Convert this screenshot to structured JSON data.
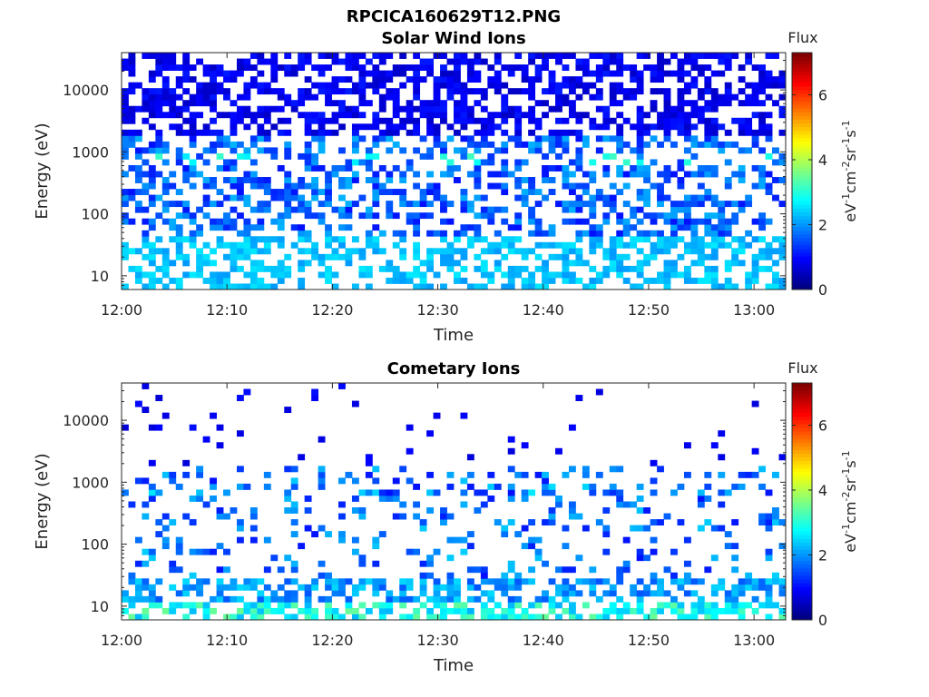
{
  "figure_title": "RPCICA160629T12.PNG",
  "chart_data": [
    {
      "type": "heatmap",
      "title": "Solar Wind Ions",
      "xlabel": "Time",
      "ylabel": "Energy (eV)",
      "xlim": [
        "12:00",
        "13:03"
      ],
      "x_ticks": [
        "12:00",
        "12:10",
        "12:20",
        "12:30",
        "12:40",
        "12:50",
        "13:00"
      ],
      "y_scale": "log",
      "ylim": [
        6,
        40000
      ],
      "y_ticks": [
        10,
        100,
        1000,
        10000
      ],
      "y_tick_labels": [
        "10",
        "100",
        "1000",
        "10000"
      ],
      "colorbar": {
        "title": "Flux",
        "label": "eV-1cm-2sr-1s-1",
        "range": [
          0,
          7.3
        ],
        "ticks": [
          "0",
          "2",
          "4",
          "6"
        ],
        "colormap": "jet"
      },
      "description_of_values": "Dense coverage from ~6 eV to ~40 keV; dark blue (~0.5–1) above 2 keV, blue (~1–2) from 50–2000 eV with a cyan band (~2–3) near 800 eV, cyan (~2–2.5) below 30 eV"
    },
    {
      "type": "heatmap",
      "title": "Cometary Ions",
      "xlabel": "Time",
      "ylabel": "Energy (eV)",
      "xlim": [
        "12:00",
        "13:03"
      ],
      "x_ticks": [
        "12:00",
        "12:10",
        "12:20",
        "12:30",
        "12:40",
        "12:50",
        "13:00"
      ],
      "y_scale": "log",
      "ylim": [
        6,
        40000
      ],
      "y_ticks": [
        10,
        100,
        1000,
        10000
      ],
      "y_tick_labels": [
        "10",
        "100",
        "1000",
        "10000"
      ],
      "colorbar": {
        "title": "Flux",
        "label": "eV-1cm-2sr-1s-1",
        "range": [
          0,
          7.3
        ],
        "ticks": [
          "0",
          "2",
          "4",
          "6"
        ],
        "colormap": "jet"
      },
      "description_of_values": "Sparse dark blue (~0.5–1) above 2 keV, scattered blue/cyan (~1–2.5) from 30–1000 eV, dense cyan to green (~2–3.5) below 25 eV"
    }
  ]
}
